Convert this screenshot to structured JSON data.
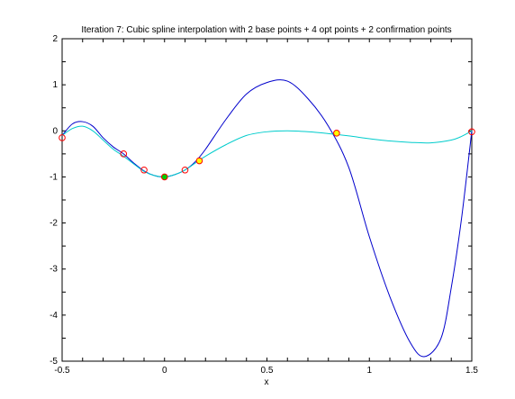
{
  "chart_data": {
    "type": "line",
    "title": "Iteration 7: Cubic spline interpolation with 2 base points + 4 opt points + 2 confirmation points",
    "xlabel": "x",
    "ylabel": "",
    "xlim": [
      -0.5,
      1.5
    ],
    "ylim": [
      -5,
      2
    ],
    "xticks": [
      -0.5,
      0,
      0.5,
      1,
      1.5
    ],
    "xtick_labels": [
      "-0.5",
      "0",
      "0.5",
      "1",
      "1.5"
    ],
    "yticks": [
      -5,
      -4,
      -3,
      -2,
      -1,
      0,
      1,
      2
    ],
    "ytick_labels": [
      "-5",
      "-4",
      "-3",
      "-2",
      "-1",
      "0",
      "1",
      "2"
    ],
    "grid": false,
    "series": [
      {
        "color": "#0000cc",
        "x": [
          -0.5,
          -0.45,
          -0.4,
          -0.35,
          -0.3,
          -0.25,
          -0.2,
          -0.15,
          -0.1,
          -0.05,
          0,
          0.05,
          0.1,
          0.15,
          0.2,
          0.3,
          0.4,
          0.5,
          0.6,
          0.7,
          0.8,
          0.9,
          1.0,
          1.1,
          1.2,
          1.27,
          1.35,
          1.4,
          1.45,
          1.5
        ],
        "y": [
          -0.1,
          0.15,
          0.2,
          0.1,
          -0.15,
          -0.35,
          -0.5,
          -0.7,
          -0.87,
          -0.97,
          -1.0,
          -0.95,
          -0.85,
          -0.67,
          -0.4,
          0.25,
          0.8,
          1.05,
          1.08,
          0.7,
          0.1,
          -0.8,
          -2.3,
          -3.6,
          -4.6,
          -4.9,
          -4.5,
          -3.4,
          -1.9,
          0.0
        ]
      },
      {
        "color": "#00cccc",
        "x": [
          -0.5,
          -0.45,
          -0.4,
          -0.35,
          -0.3,
          -0.25,
          -0.2,
          -0.15,
          -0.1,
          -0.05,
          0,
          0.05,
          0.1,
          0.15,
          0.2,
          0.3,
          0.4,
          0.5,
          0.6,
          0.7,
          0.8,
          0.9,
          1.0,
          1.1,
          1.2,
          1.3,
          1.4,
          1.45,
          1.5
        ],
        "y": [
          -0.1,
          0.05,
          0.1,
          0.0,
          -0.2,
          -0.4,
          -0.55,
          -0.72,
          -0.88,
          -0.97,
          -1.0,
          -0.95,
          -0.85,
          -0.7,
          -0.55,
          -0.3,
          -0.1,
          -0.02,
          0.0,
          -0.02,
          -0.06,
          -0.11,
          -0.17,
          -0.22,
          -0.25,
          -0.26,
          -0.2,
          -0.12,
          0.0
        ]
      }
    ],
    "markers": [
      {
        "x": -0.5,
        "y": -0.15,
        "fill": "none",
        "stroke": "#ff0000"
      },
      {
        "x": -0.2,
        "y": -0.5,
        "fill": "none",
        "stroke": "#ff0000"
      },
      {
        "x": -0.1,
        "y": -0.85,
        "fill": "none",
        "stroke": "#ff0000"
      },
      {
        "x": 0.1,
        "y": -0.85,
        "fill": "none",
        "stroke": "#ff0000"
      },
      {
        "x": 0.0,
        "y": -1.0,
        "fill": "#00cc00",
        "stroke": "#ff0000"
      },
      {
        "x": 0.17,
        "y": -0.65,
        "fill": "#ffff00",
        "stroke": "#ff0000"
      },
      {
        "x": 0.84,
        "y": -0.05,
        "fill": "#ffff00",
        "stroke": "#ff0000"
      },
      {
        "x": 1.5,
        "y": -0.02,
        "fill": "none",
        "stroke": "#ff0000"
      }
    ]
  }
}
